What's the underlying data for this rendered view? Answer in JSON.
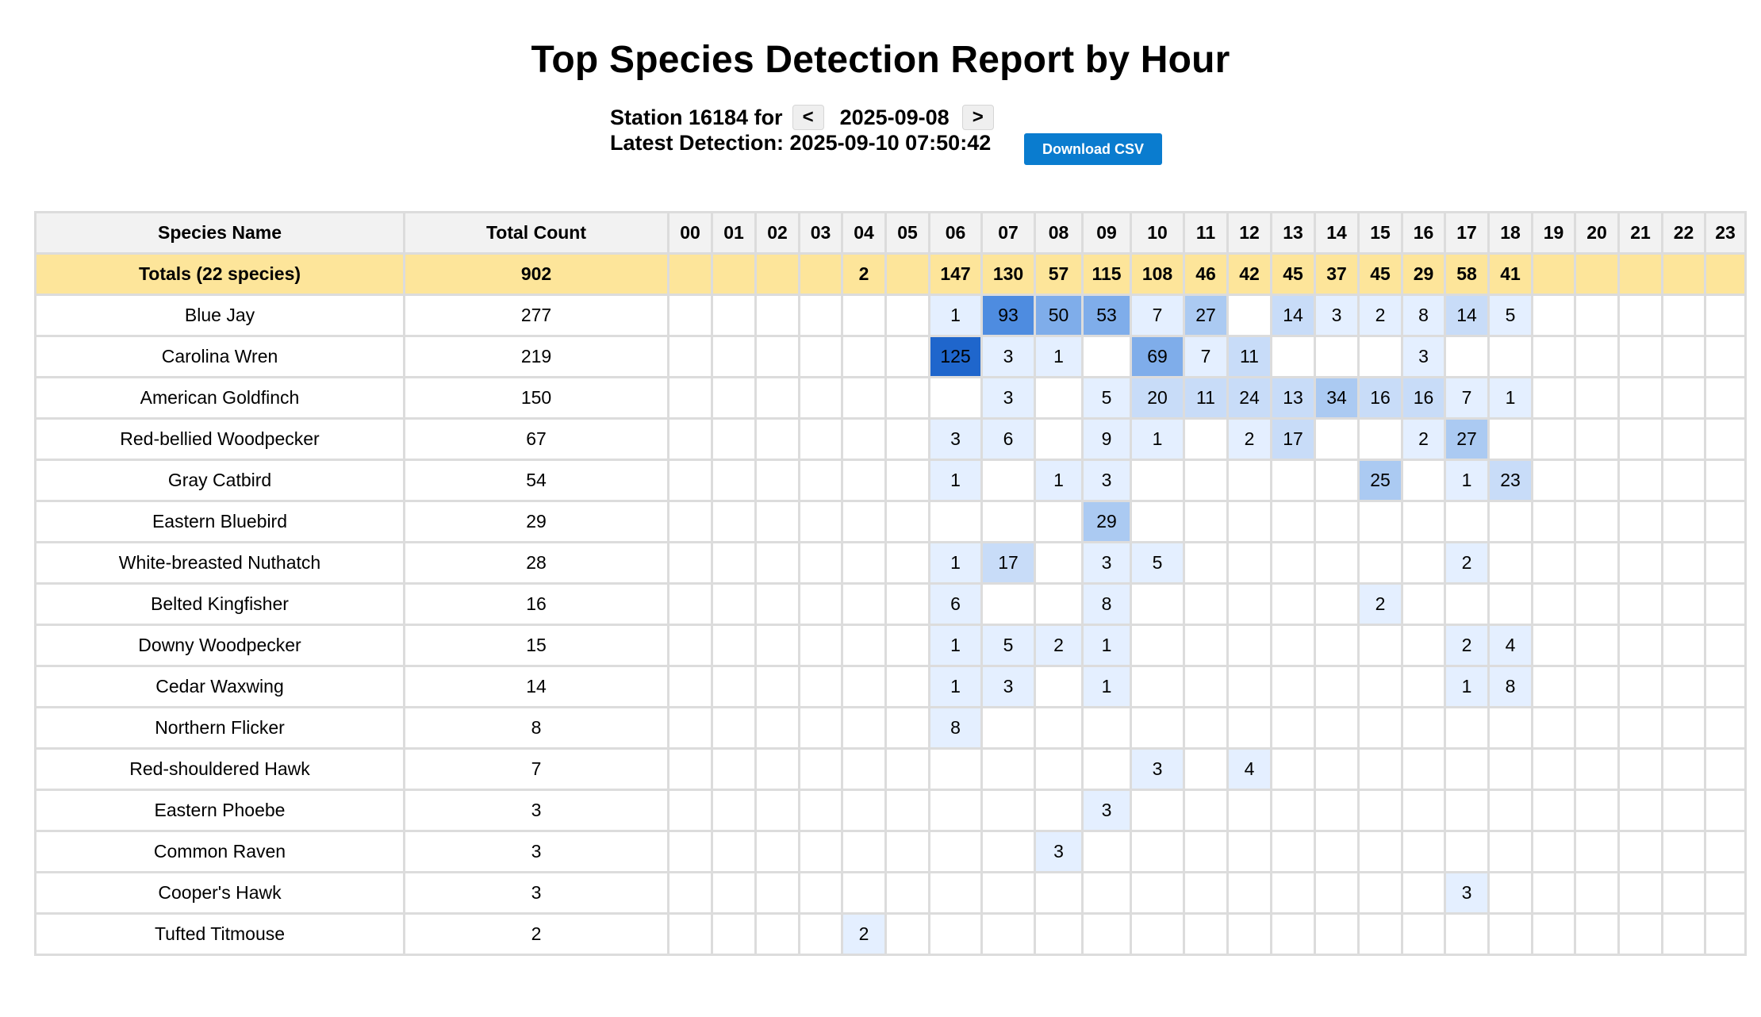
{
  "title": "Top Species Detection Report by Hour",
  "station": {
    "prefix": "Station 16184 for",
    "prev_label": "<",
    "date": "2025-09-08",
    "next_label": ">",
    "latest_detection": "Latest Detection: 2025-09-10 07:50:42"
  },
  "download_label": "Download CSV",
  "table": {
    "headers": {
      "species": "Species Name",
      "total": "Total Count",
      "hours": [
        "00",
        "01",
        "02",
        "03",
        "04",
        "05",
        "06",
        "07",
        "08",
        "09",
        "10",
        "11",
        "12",
        "13",
        "14",
        "15",
        "16",
        "17",
        "18",
        "19",
        "20",
        "21",
        "22",
        "23"
      ]
    },
    "totals": {
      "label": "Totals (22 species)",
      "total": "902",
      "hours": [
        "",
        "",
        "",
        "",
        "2",
        "",
        "147",
        "130",
        "57",
        "115",
        "108",
        "46",
        "42",
        "45",
        "37",
        "45",
        "29",
        "58",
        "41",
        "",
        "",
        "",
        "",
        ""
      ]
    },
    "rows": [
      {
        "name": "Blue Jay",
        "total": "277",
        "hours": [
          "",
          "",
          "",
          "",
          "",
          "",
          "1",
          "93",
          "50",
          "53",
          "7",
          "27",
          "",
          "14",
          "3",
          "2",
          "8",
          "14",
          "5",
          "",
          "",
          "",
          "",
          ""
        ]
      },
      {
        "name": "Carolina Wren",
        "total": "219",
        "hours": [
          "",
          "",
          "",
          "",
          "",
          "",
          "125",
          "3",
          "1",
          "",
          "69",
          "7",
          "11",
          "",
          "",
          "",
          "3",
          "",
          "",
          "",
          "",
          "",
          "",
          ""
        ]
      },
      {
        "name": "American Goldfinch",
        "total": "150",
        "hours": [
          "",
          "",
          "",
          "",
          "",
          "",
          "",
          "3",
          "",
          "5",
          "20",
          "11",
          "24",
          "13",
          "34",
          "16",
          "16",
          "7",
          "1",
          "",
          "",
          "",
          "",
          ""
        ]
      },
      {
        "name": "Red-bellied Woodpecker",
        "total": "67",
        "hours": [
          "",
          "",
          "",
          "",
          "",
          "",
          "3",
          "6",
          "",
          "9",
          "1",
          "",
          "2",
          "17",
          "",
          "",
          "2",
          "27",
          "",
          "",
          "",
          "",
          "",
          ""
        ]
      },
      {
        "name": "Gray Catbird",
        "total": "54",
        "hours": [
          "",
          "",
          "",
          "",
          "",
          "",
          "1",
          "",
          "1",
          "3",
          "",
          "",
          "",
          "",
          "",
          "25",
          "",
          "1",
          "23",
          "",
          "",
          "",
          "",
          ""
        ]
      },
      {
        "name": "Eastern Bluebird",
        "total": "29",
        "hours": [
          "",
          "",
          "",
          "",
          "",
          "",
          "",
          "",
          "",
          "29",
          "",
          "",
          "",
          "",
          "",
          "",
          "",
          "",
          "",
          "",
          "",
          "",
          "",
          ""
        ]
      },
      {
        "name": "White-breasted Nuthatch",
        "total": "28",
        "hours": [
          "",
          "",
          "",
          "",
          "",
          "",
          "1",
          "17",
          "",
          "3",
          "5",
          "",
          "",
          "",
          "",
          "",
          "",
          "2",
          "",
          "",
          "",
          "",
          "",
          ""
        ]
      },
      {
        "name": "Belted Kingfisher",
        "total": "16",
        "hours": [
          "",
          "",
          "",
          "",
          "",
          "",
          "6",
          "",
          "",
          "8",
          "",
          "",
          "",
          "",
          "",
          "2",
          "",
          "",
          "",
          "",
          "",
          "",
          "",
          ""
        ]
      },
      {
        "name": "Downy Woodpecker",
        "total": "15",
        "hours": [
          "",
          "",
          "",
          "",
          "",
          "",
          "1",
          "5",
          "2",
          "1",
          "",
          "",
          "",
          "",
          "",
          "",
          "",
          "2",
          "4",
          "",
          "",
          "",
          "",
          ""
        ]
      },
      {
        "name": "Cedar Waxwing",
        "total": "14",
        "hours": [
          "",
          "",
          "",
          "",
          "",
          "",
          "1",
          "3",
          "",
          "1",
          "",
          "",
          "",
          "",
          "",
          "",
          "",
          "1",
          "8",
          "",
          "",
          "",
          "",
          ""
        ]
      },
      {
        "name": "Northern Flicker",
        "total": "8",
        "hours": [
          "",
          "",
          "",
          "",
          "",
          "",
          "8",
          "",
          "",
          "",
          "",
          "",
          "",
          "",
          "",
          "",
          "",
          "",
          "",
          "",
          "",
          "",
          "",
          ""
        ]
      },
      {
        "name": "Red-shouldered Hawk",
        "total": "7",
        "hours": [
          "",
          "",
          "",
          "",
          "",
          "",
          "",
          "",
          "",
          "",
          "3",
          "",
          "4",
          "",
          "",
          "",
          "",
          "",
          "",
          "",
          "",
          "",
          "",
          ""
        ]
      },
      {
        "name": "Eastern Phoebe",
        "total": "3",
        "hours": [
          "",
          "",
          "",
          "",
          "",
          "",
          "",
          "",
          "",
          "3",
          "",
          "",
          "",
          "",
          "",
          "",
          "",
          "",
          "",
          "",
          "",
          "",
          "",
          ""
        ]
      },
      {
        "name": "Common Raven",
        "total": "3",
        "hours": [
          "",
          "",
          "",
          "",
          "",
          "",
          "",
          "",
          "3",
          "",
          "",
          "",
          "",
          "",
          "",
          "",
          "",
          "",
          "",
          "",
          "",
          "",
          "",
          ""
        ]
      },
      {
        "name": "Cooper's Hawk",
        "total": "3",
        "hours": [
          "",
          "",
          "",
          "",
          "",
          "",
          "",
          "",
          "",
          "",
          "",
          "",
          "",
          "",
          "",
          "",
          "",
          "3",
          "",
          "",
          "",
          "",
          "",
          ""
        ]
      },
      {
        "name": "Tufted Titmouse",
        "total": "2",
        "hours": [
          "",
          "",
          "",
          "",
          "2",
          "",
          "",
          "",
          "",
          "",
          "",
          "",
          "",
          "",
          "",
          "",
          "",
          "",
          "",
          "",
          "",
          "",
          "",
          ""
        ]
      }
    ]
  },
  "colors": {
    "totals_row": "#fde59a",
    "header_bg": "#f2f2f2",
    "csv_button": "#0a7ccf",
    "heat_scale": [
      "#e4efff",
      "#c8dcf8",
      "#abcaf2",
      "#7fadea",
      "#4e8ce0",
      "#1f66cc"
    ]
  }
}
